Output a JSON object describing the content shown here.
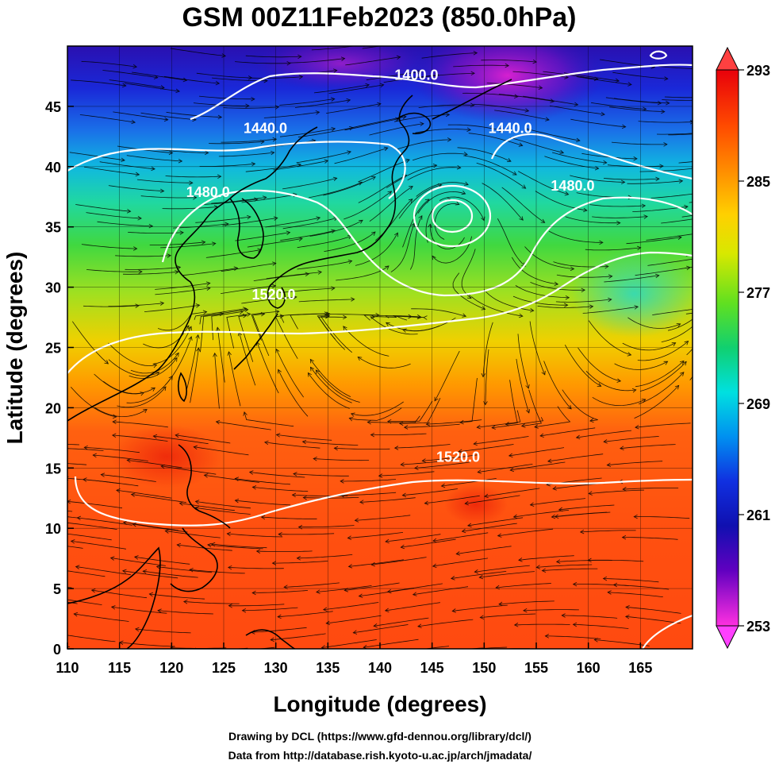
{
  "title": "GSM 00Z11Feb2023 (850.0hPa)",
  "xlabel": "Longitude (degrees)",
  "ylabel": "Latitude  (degrees)",
  "credits": [
    "Drawing by DCL (https://www.gfd-dennou.org/library/dcl/)",
    "Data from http://database.rish.kyoto-u.ac.jp/arch/jmadata/"
  ],
  "xlim": [
    110,
    170
  ],
  "ylim": [
    0,
    50
  ],
  "x_ticks": [
    "110",
    "115",
    "120",
    "125",
    "130",
    "135",
    "140",
    "145",
    "150",
    "155",
    "160",
    "165"
  ],
  "y_ticks": [
    "0",
    "5",
    "10",
    "15",
    "20",
    "25",
    "30",
    "35",
    "40",
    "45"
  ],
  "colorbar": {
    "min": 253,
    "max": 293,
    "labels": [
      "293",
      "285",
      "277",
      "269",
      "261",
      "253"
    ],
    "colors_top_to_bottom": [
      "#e8000b",
      "#ff4a00",
      "#ff8c00",
      "#ffd000",
      "#d8e800",
      "#60e020",
      "#10d070",
      "#00e0e0",
      "#0090f0",
      "#1030e0",
      "#1010b0",
      "#6000c0",
      "#c000d0",
      "#ff30e0"
    ]
  },
  "contour_labels": [
    {
      "text": "1400.0",
      "lon": 143.5,
      "lat": 47.2
    },
    {
      "text": "1440.0",
      "lon": 129.0,
      "lat": 42.8
    },
    {
      "text": "1440.0",
      "lon": 152.5,
      "lat": 42.8
    },
    {
      "text": "1480.0",
      "lon": 123.5,
      "lat": 37.5
    },
    {
      "text": "1480.0",
      "lon": 158.5,
      "lat": 38.0
    },
    {
      "text": "1520.0",
      "lon": 129.8,
      "lat": 29.0
    },
    {
      "text": "1520.0",
      "lon": 147.5,
      "lat": 15.5
    }
  ]
}
